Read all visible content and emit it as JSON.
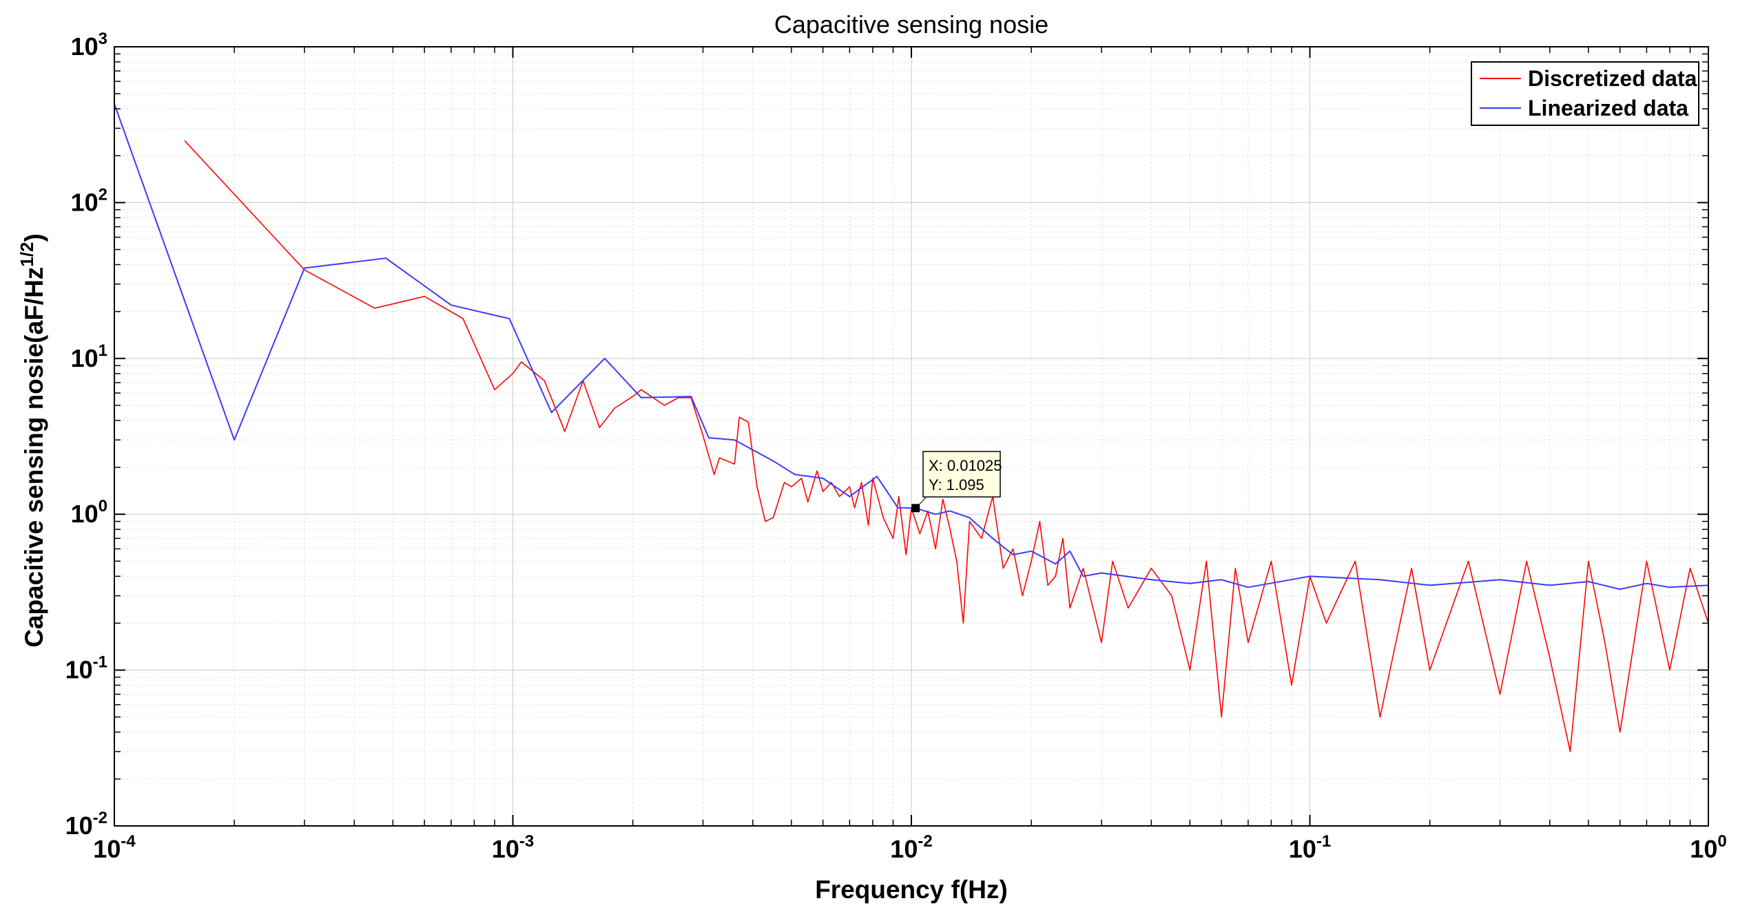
{
  "chart_data": {
    "type": "line",
    "title": "Capacitive sensing nosie",
    "xlabel": "Frequency f(Hz)",
    "ylabel": "Capacitive sensing nosie(aF/Hz",
    "ylabel_superscript": "1/2",
    "ylabel_close": ")",
    "xscale": "log",
    "yscale": "log",
    "xlim": [
      0.0001,
      1
    ],
    "ylim": [
      0.01,
      1000
    ],
    "grid": true,
    "legend_position": "top-right",
    "x_ticks": [
      {
        "value": 0.0001,
        "base": "10",
        "exp": "-4"
      },
      {
        "value": 0.001,
        "base": "10",
        "exp": "-3"
      },
      {
        "value": 0.01,
        "base": "10",
        "exp": "-2"
      },
      {
        "value": 0.1,
        "base": "10",
        "exp": "-1"
      },
      {
        "value": 1,
        "base": "10",
        "exp": "0"
      }
    ],
    "y_ticks": [
      {
        "value": 0.01,
        "base": "10",
        "exp": "-2"
      },
      {
        "value": 0.1,
        "base": "10",
        "exp": "-1"
      },
      {
        "value": 1,
        "base": "10",
        "exp": "0"
      },
      {
        "value": 10,
        "base": "10",
        "exp": "1"
      },
      {
        "value": 100,
        "base": "10",
        "exp": "2"
      },
      {
        "value": 1000,
        "base": "10",
        "exp": "3"
      }
    ],
    "series": [
      {
        "name": "Discretized data",
        "color": "#ff0000",
        "points": [
          [
            0.00015,
            250
          ],
          [
            0.0003,
            37
          ],
          [
            0.00045,
            21
          ],
          [
            0.0006,
            25
          ],
          [
            0.00075,
            18
          ],
          [
            0.0009,
            6.3
          ],
          [
            0.001,
            8
          ],
          [
            0.00105,
            9.5
          ],
          [
            0.0012,
            7.2
          ],
          [
            0.00135,
            3.4
          ],
          [
            0.0015,
            7.2
          ],
          [
            0.00165,
            3.6
          ],
          [
            0.0018,
            4.8
          ],
          [
            0.002,
            5.7
          ],
          [
            0.0021,
            6.3
          ],
          [
            0.0024,
            5
          ],
          [
            0.0026,
            5.6
          ],
          [
            0.0028,
            5.6
          ],
          [
            0.003,
            3.2
          ],
          [
            0.0032,
            1.8
          ],
          [
            0.0033,
            2.3
          ],
          [
            0.0036,
            2.1
          ],
          [
            0.0037,
            4.2
          ],
          [
            0.0039,
            3.9
          ],
          [
            0.0041,
            1.5
          ],
          [
            0.0043,
            0.9
          ],
          [
            0.0045,
            0.95
          ],
          [
            0.0048,
            1.6
          ],
          [
            0.005,
            1.5
          ],
          [
            0.0053,
            1.7
          ],
          [
            0.0055,
            1.2
          ],
          [
            0.0058,
            1.9
          ],
          [
            0.006,
            1.4
          ],
          [
            0.0063,
            1.6
          ],
          [
            0.0066,
            1.3
          ],
          [
            0.007,
            1.5
          ],
          [
            0.0072,
            1.1
          ],
          [
            0.0075,
            1.6
          ],
          [
            0.0078,
            0.85
          ],
          [
            0.008,
            1.7
          ],
          [
            0.0085,
            0.95
          ],
          [
            0.009,
            0.7
          ],
          [
            0.0093,
            1.3
          ],
          [
            0.0097,
            0.55
          ],
          [
            0.01,
            1.1
          ],
          [
            0.0105,
            0.75
          ],
          [
            0.011,
            1.05
          ],
          [
            0.0115,
            0.6
          ],
          [
            0.012,
            1.25
          ],
          [
            0.0125,
            0.8
          ],
          [
            0.013,
            0.5
          ],
          [
            0.0135,
            0.2
          ],
          [
            0.014,
            0.9
          ],
          [
            0.015,
            0.7
          ],
          [
            0.016,
            1.3
          ],
          [
            0.017,
            0.45
          ],
          [
            0.018,
            0.6
          ],
          [
            0.019,
            0.3
          ],
          [
            0.02,
            0.5
          ],
          [
            0.021,
            0.9
          ],
          [
            0.022,
            0.35
          ],
          [
            0.023,
            0.4
          ],
          [
            0.024,
            0.7
          ],
          [
            0.025,
            0.25
          ],
          [
            0.027,
            0.45
          ],
          [
            0.03,
            0.15
          ],
          [
            0.032,
            0.5
          ],
          [
            0.035,
            0.25
          ],
          [
            0.04,
            0.45
          ],
          [
            0.045,
            0.3
          ],
          [
            0.05,
            0.1
          ],
          [
            0.055,
            0.5
          ],
          [
            0.06,
            0.05
          ],
          [
            0.065,
            0.45
          ],
          [
            0.07,
            0.15
          ],
          [
            0.08,
            0.5
          ],
          [
            0.09,
            0.08
          ],
          [
            0.1,
            0.4
          ],
          [
            0.11,
            0.2
          ],
          [
            0.13,
            0.5
          ],
          [
            0.15,
            0.05
          ],
          [
            0.18,
            0.45
          ],
          [
            0.2,
            0.1
          ],
          [
            0.25,
            0.5
          ],
          [
            0.3,
            0.07
          ],
          [
            0.35,
            0.5
          ],
          [
            0.4,
            0.12
          ],
          [
            0.45,
            0.03
          ],
          [
            0.5,
            0.5
          ],
          [
            0.55,
            0.15
          ],
          [
            0.6,
            0.04
          ],
          [
            0.7,
            0.5
          ],
          [
            0.8,
            0.1
          ],
          [
            0.9,
            0.45
          ],
          [
            1.0,
            0.2
          ]
        ]
      },
      {
        "name": "Linearized data",
        "color": "#3a3aff",
        "points": [
          [
            0.0001,
            430
          ],
          [
            0.0002,
            3
          ],
          [
            0.0003,
            38
          ],
          [
            0.00048,
            44
          ],
          [
            0.0007,
            22
          ],
          [
            0.00098,
            18
          ],
          [
            0.00125,
            4.5
          ],
          [
            0.0017,
            10
          ],
          [
            0.0021,
            5.6
          ],
          [
            0.0028,
            5.7
          ],
          [
            0.0031,
            3.1
          ],
          [
            0.0036,
            3
          ],
          [
            0.0045,
            2.2
          ],
          [
            0.0051,
            1.8
          ],
          [
            0.006,
            1.7
          ],
          [
            0.007,
            1.3
          ],
          [
            0.0082,
            1.75
          ],
          [
            0.00925,
            1.1
          ],
          [
            0.01025,
            1.095
          ],
          [
            0.0115,
            1.0
          ],
          [
            0.0125,
            1.05
          ],
          [
            0.014,
            0.95
          ],
          [
            0.016,
            0.7
          ],
          [
            0.018,
            0.55
          ],
          [
            0.02,
            0.58
          ],
          [
            0.023,
            0.48
          ],
          [
            0.025,
            0.58
          ],
          [
            0.027,
            0.4
          ],
          [
            0.03,
            0.42
          ],
          [
            0.04,
            0.38
          ],
          [
            0.05,
            0.36
          ],
          [
            0.06,
            0.38
          ],
          [
            0.07,
            0.34
          ],
          [
            0.1,
            0.4
          ],
          [
            0.15,
            0.38
          ],
          [
            0.2,
            0.35
          ],
          [
            0.3,
            0.38
          ],
          [
            0.4,
            0.35
          ],
          [
            0.5,
            0.37
          ],
          [
            0.6,
            0.33
          ],
          [
            0.7,
            0.36
          ],
          [
            0.8,
            0.34
          ],
          [
            1.0,
            0.35
          ]
        ]
      }
    ],
    "datatip": {
      "x": 0.01025,
      "y": 1.095,
      "x_label": "X: 0.01025",
      "y_label": "Y: 1.095"
    }
  }
}
